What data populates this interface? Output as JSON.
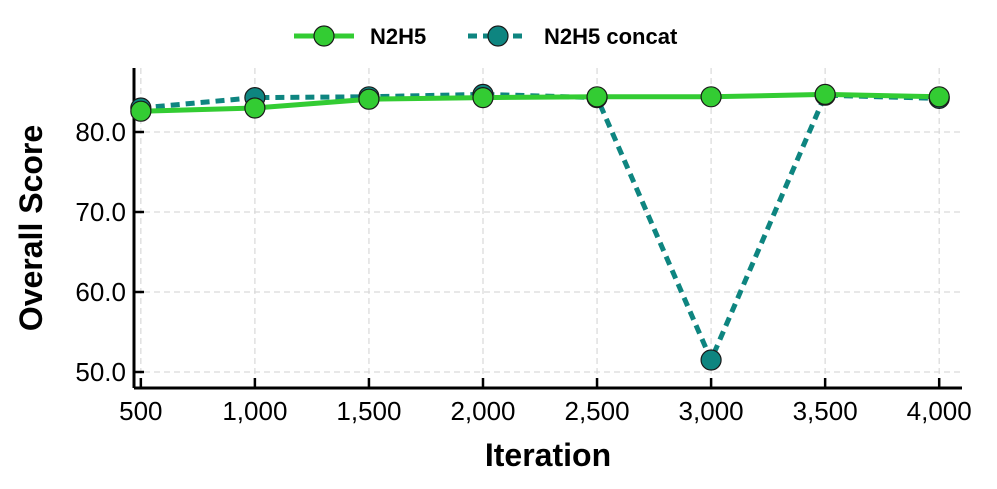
{
  "chart_data": {
    "type": "line",
    "title": "",
    "xlabel": "Iteration",
    "ylabel": "Overall Score",
    "x": [
      500,
      1000,
      1500,
      2000,
      2500,
      3000,
      3500,
      4000
    ],
    "x_tick_labels": [
      "500",
      "1,000",
      "1,500",
      "2,000",
      "2,500",
      "3,000",
      "3,500",
      "4,000"
    ],
    "y_ticks": [
      50,
      60,
      70,
      80
    ],
    "y_tick_labels": [
      "50.0",
      "60.0",
      "70.0",
      "80.0"
    ],
    "xlim": [
      470,
      4100
    ],
    "ylim": [
      48,
      88
    ],
    "grid": true,
    "legend_position": "top-center",
    "series": [
      {
        "name": "N2H5",
        "values": [
          82.6,
          83.0,
          84.1,
          84.3,
          84.4,
          84.4,
          84.7,
          84.4
        ],
        "color": "#33cc33",
        "line_style": "solid"
      },
      {
        "name": "N2H5 concat",
        "values": [
          83.0,
          84.3,
          84.4,
          84.7,
          84.3,
          51.5,
          84.6,
          84.2
        ],
        "color": "#0e8580",
        "line_style": "dashed"
      }
    ]
  }
}
